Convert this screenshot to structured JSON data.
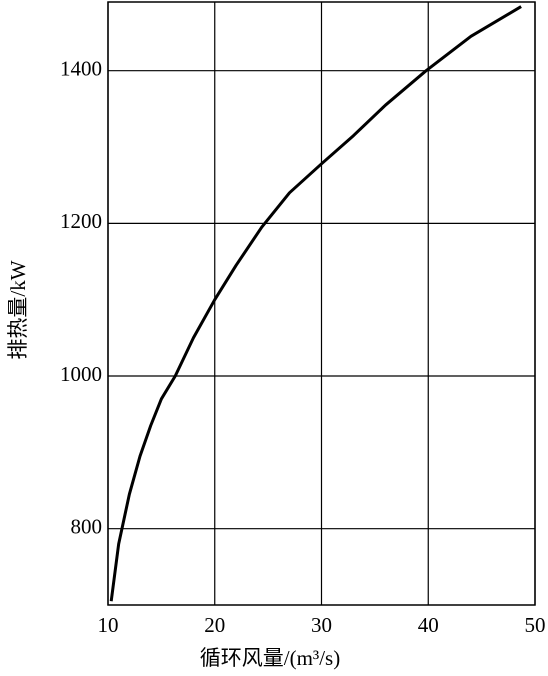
{
  "chart_data": {
    "type": "line",
    "x_label": "循环风量/(m³/s)",
    "y_label": "排热量/kW",
    "x": [
      10.3,
      11,
      12,
      13,
      14,
      15,
      16.3,
      18,
      20,
      22,
      24.4,
      27,
      30,
      33,
      36,
      39.8,
      44,
      48.7
    ],
    "series": [
      {
        "color": "#000000",
        "values": [
          705,
          780,
          845,
          895,
          935,
          970,
          1000,
          1050,
          1100,
          1145,
          1195,
          1240,
          1278,
          1315,
          1355,
          1400,
          1445,
          1484
        ]
      }
    ],
    "xlim": [
      10,
      50
    ],
    "xticks": [
      10,
      20,
      30,
      40,
      50
    ],
    "ylim": [
      700,
      1490
    ],
    "yticks": [
      800,
      1000,
      1200,
      1400
    ],
    "grid": true
  }
}
